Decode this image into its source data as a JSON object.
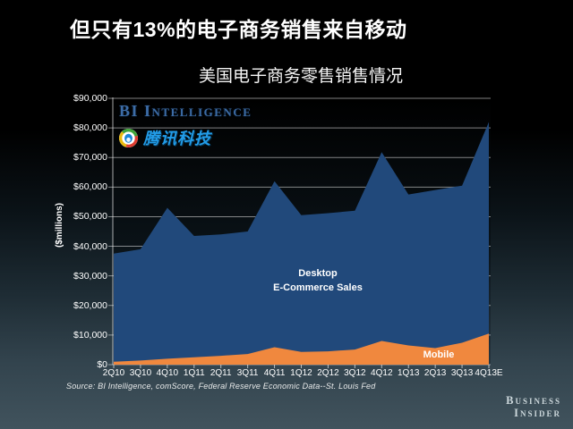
{
  "slide": {
    "main_title": "但只有13%的电子商务销售来自移动",
    "source_note": "Source: BI Intelligence, comScore, Federal Reserve Economic Data--St. Louis Fed",
    "brand": {
      "line1": "Business",
      "line2": "Insider"
    }
  },
  "watermarks": {
    "bi_intelligence": "BI Intelligence",
    "tencent_tech": "腾讯科技"
  },
  "chart_data": {
    "type": "area",
    "stacked": true,
    "title": "美国电子商务零售销售情况",
    "xlabel": "",
    "ylabel": "($millions)",
    "ylim": [
      0,
      90000
    ],
    "ytick_step": 10000,
    "ytick_labels": [
      "$0",
      "$10,000",
      "$20,000",
      "$30,000",
      "$40,000",
      "$50,000",
      "$60,000",
      "$70,000",
      "$80,000",
      "$90,000"
    ],
    "grid": true,
    "legend_position": "in-plot labels",
    "categories": [
      "2Q10",
      "3Q10",
      "4Q10",
      "1Q11",
      "2Q11",
      "3Q11",
      "4Q11",
      "1Q12",
      "2Q12",
      "3Q12",
      "4Q12",
      "1Q13",
      "2Q13",
      "3Q13",
      "4Q13E"
    ],
    "series": [
      {
        "name": "Mobile",
        "color": "#F0883E",
        "values": [
          1000,
          1400,
          2000,
          2500,
          3000,
          3600,
          5900,
          4300,
          4500,
          5100,
          8000,
          6500,
          5600,
          7400,
          10500
        ]
      },
      {
        "name": "Desktop E-Commerce Sales",
        "color": "#21497B",
        "values": [
          36500,
          37600,
          51000,
          41000,
          41000,
          41400,
          56100,
          46200,
          46700,
          46900,
          63800,
          51000,
          53400,
          53100,
          71500
        ]
      }
    ],
    "labels": {
      "desktop_line1": "Desktop",
      "desktop_line2": "E-Commerce Sales",
      "mobile": "Mobile"
    },
    "colors": {
      "gridline": "rgba(255,255,255,0.5)",
      "axis": "rgba(255,255,255,0.65)",
      "tick_text": "#ffffff"
    }
  }
}
